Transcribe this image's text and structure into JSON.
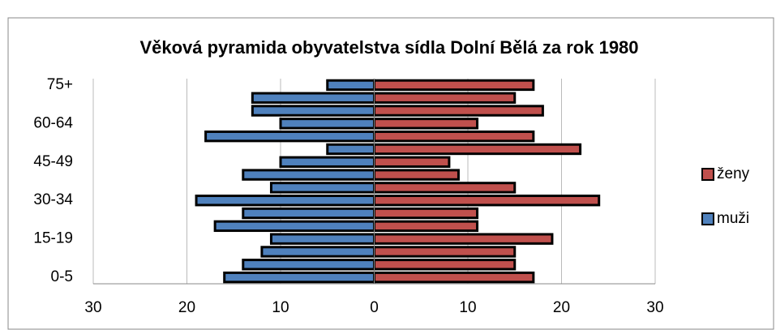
{
  "chart_data": {
    "type": "bar",
    "orientation": "horizontal",
    "layout": "pyramid",
    "title": "Věková pyramida obyvatelstva sídla Dolní Bělá za rok 1980",
    "categories": [
      "0-5",
      null,
      null,
      "15-19",
      null,
      null,
      "30-34",
      null,
      null,
      "45-49",
      null,
      null,
      "60-64",
      null,
      null,
      "75+"
    ],
    "series": [
      {
        "name": "ženy",
        "color": "#c0504d",
        "values": [
          17,
          15,
          15,
          19,
          11,
          11,
          24,
          15,
          9,
          8,
          22,
          17,
          11,
          18,
          15,
          17
        ]
      },
      {
        "name": "muži",
        "color": "#4f81bd",
        "values": [
          -16,
          -14,
          -12,
          -11,
          -17,
          -14,
          -19,
          -11,
          -14,
          -10,
          -5,
          -18,
          -10,
          -13,
          -13,
          -5
        ]
      }
    ],
    "xlim": [
      -30,
      30
    ],
    "xticks": [
      {
        "value": -30,
        "label": "30"
      },
      {
        "value": -20,
        "label": "20"
      },
      {
        "value": -10,
        "label": "10"
      },
      0,
      10,
      20,
      30
    ],
    "grid": true,
    "legend": "right"
  }
}
